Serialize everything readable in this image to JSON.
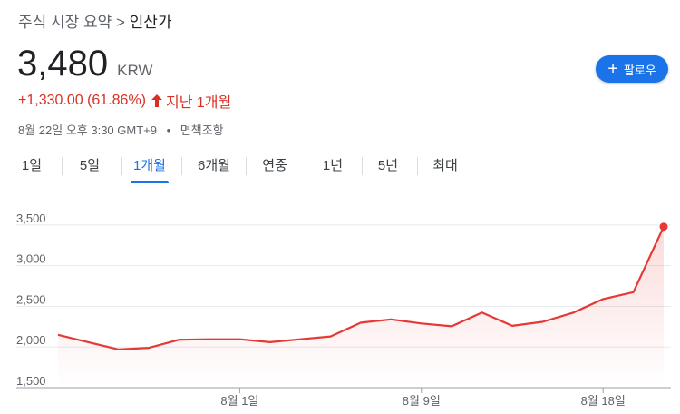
{
  "breadcrumb": {
    "parent": "주식 시장 요약 >",
    "current": "인산가"
  },
  "quote": {
    "price": "3,480",
    "currency": "KRW",
    "change": "+1,330.00 (61.86%)",
    "period_text": "지난 1개월",
    "timestamp": "8월 22일 오후 3:30 GMT+9",
    "disclaimer": "면책조항"
  },
  "follow_button": {
    "label": "팔로우"
  },
  "tabs": [
    {
      "label": "1일",
      "active": false
    },
    {
      "label": "5일",
      "active": false
    },
    {
      "label": "1개월",
      "active": true
    },
    {
      "label": "6개월",
      "active": false
    },
    {
      "label": "연중",
      "active": false
    },
    {
      "label": "1년",
      "active": false
    },
    {
      "label": "5년",
      "active": false
    },
    {
      "label": "최대",
      "active": false
    }
  ],
  "colors": {
    "accent": "#1a73e8",
    "negative_or_up": "#d93025",
    "line": "#e53935"
  },
  "chart_data": {
    "type": "area",
    "series": [
      {
        "values": [
          2150,
          2060,
          1970,
          1990,
          2090,
          2095,
          2095,
          2060,
          2095,
          2130,
          2300,
          2340,
          2290,
          2255,
          2425,
          2260,
          2310,
          2420,
          2590,
          2675,
          3480
        ]
      }
    ],
    "x_ticks": [
      "8월 1일",
      "8월 9일",
      "8월 18일"
    ],
    "y_ticks": [
      "1,500",
      "2,000",
      "2,500",
      "3,000",
      "3,500"
    ],
    "ylim": [
      1500,
      3700
    ],
    "grid": true
  }
}
